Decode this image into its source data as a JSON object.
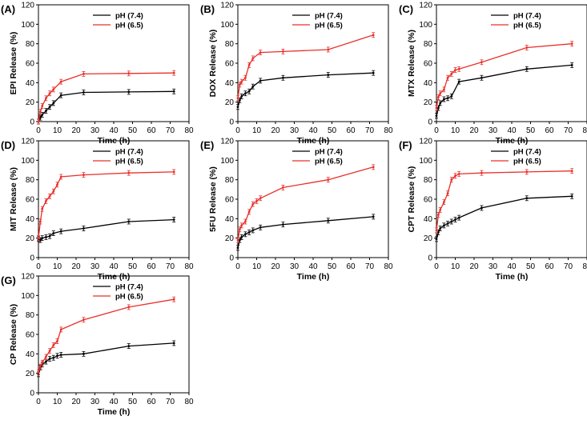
{
  "chart_data": [
    {
      "panel": "(A)",
      "type": "line",
      "xlabel": "Time (h)",
      "ylabel": "EPI Release (%)",
      "xlim": [
        0,
        80
      ],
      "ylim": [
        0,
        120
      ],
      "xticks": [
        0,
        10,
        20,
        30,
        40,
        50,
        60,
        70,
        80
      ],
      "yticks": [
        0,
        20,
        40,
        60,
        80,
        100,
        120
      ],
      "legend_position": "top-center",
      "series": [
        {
          "name": "pH (7.4)",
          "color": "#000000",
          "x": [
            0,
            1,
            2,
            4,
            6,
            8,
            12,
            24,
            48,
            72
          ],
          "y": [
            0,
            4,
            7,
            11,
            15,
            19,
            27,
            30,
            30.5,
            31
          ]
        },
        {
          "name": "pH (6.5)",
          "color": "#e8302a",
          "x": [
            0,
            1,
            2,
            4,
            6,
            8,
            12,
            24,
            48,
            72
          ],
          "y": [
            0,
            10,
            16,
            24,
            29,
            33,
            41,
            49,
            49.5,
            50
          ]
        }
      ]
    },
    {
      "panel": "(B)",
      "type": "line",
      "xlabel": "Time (h)",
      "ylabel": "DOX Release (%)",
      "xlim": [
        0,
        80
      ],
      "ylim": [
        0,
        120
      ],
      "xticks": [
        0,
        10,
        20,
        30,
        40,
        50,
        60,
        70,
        80
      ],
      "yticks": [
        0,
        20,
        40,
        60,
        80,
        100,
        120
      ],
      "legend_position": "top-center",
      "series": [
        {
          "name": "pH (7.4)",
          "color": "#000000",
          "x": [
            0,
            1,
            2,
            4,
            6,
            8,
            12,
            24,
            48,
            72
          ],
          "y": [
            15,
            22,
            26,
            29,
            31,
            36,
            42,
            45,
            48,
            50
          ]
        },
        {
          "name": "pH (6.5)",
          "color": "#e8302a",
          "x": [
            0,
            1,
            2,
            4,
            6,
            8,
            12,
            24,
            48,
            72
          ],
          "y": [
            24,
            38,
            41,
            45,
            58,
            65,
            71,
            72,
            74,
            89
          ]
        }
      ]
    },
    {
      "panel": "(C)",
      "type": "line",
      "xlabel": "Time (h)",
      "ylabel": "MTX Release (%)",
      "xlim": [
        0,
        80
      ],
      "ylim": [
        0,
        120
      ],
      "xticks": [
        0,
        10,
        20,
        30,
        40,
        50,
        60,
        70,
        80
      ],
      "yticks": [
        0,
        20,
        40,
        60,
        80,
        100,
        120
      ],
      "legend_position": "top-center",
      "series": [
        {
          "name": "pH (7.4)",
          "color": "#000000",
          "x": [
            0,
            1,
            2,
            4,
            6,
            8,
            12,
            24,
            48,
            72
          ],
          "y": [
            6,
            14,
            19,
            23,
            24,
            26,
            41,
            45,
            54,
            58
          ]
        },
        {
          "name": "pH (6.5)",
          "color": "#e8302a",
          "x": [
            0,
            1,
            2,
            4,
            6,
            8,
            10,
            12,
            24,
            48,
            72
          ],
          "y": [
            14,
            25,
            29,
            33,
            45,
            49,
            53,
            54,
            61,
            76,
            80
          ]
        }
      ]
    },
    {
      "panel": "(D)",
      "type": "line",
      "xlabel": "Time (h)",
      "ylabel": "MIT Release (%)",
      "xlim": [
        0,
        80
      ],
      "ylim": [
        0,
        120
      ],
      "xticks": [
        0,
        10,
        20,
        30,
        40,
        50,
        60,
        70,
        80
      ],
      "yticks": [
        0,
        20,
        40,
        60,
        80,
        100,
        120
      ],
      "legend_position": "top-center",
      "series": [
        {
          "name": "pH (7.4)",
          "color": "#000000",
          "x": [
            0,
            1,
            2,
            4,
            6,
            8,
            12,
            24,
            48,
            72
          ],
          "y": [
            19,
            18,
            20,
            21,
            22,
            25,
            27,
            30,
            37,
            39
          ]
        },
        {
          "name": "pH (6.5)",
          "color": "#e8302a",
          "x": [
            0,
            1,
            2,
            4,
            6,
            8,
            10,
            12,
            24,
            48,
            72
          ],
          "y": [
            20,
            37,
            50,
            58,
            63,
            68,
            75,
            83,
            85,
            87,
            88
          ]
        }
      ]
    },
    {
      "panel": "(E)",
      "type": "line",
      "xlabel": "Time (h)",
      "ylabel": "5FU Release (%)",
      "xlim": [
        0,
        80
      ],
      "ylim": [
        0,
        120
      ],
      "xticks": [
        0,
        10,
        20,
        30,
        40,
        50,
        60,
        70,
        80
      ],
      "yticks": [
        0,
        20,
        40,
        60,
        80,
        100,
        120
      ],
      "legend_position": "top-center",
      "series": [
        {
          "name": "pH (7.4)",
          "color": "#000000",
          "x": [
            0,
            1,
            2,
            4,
            6,
            8,
            12,
            24,
            48,
            72
          ],
          "y": [
            10,
            18,
            21,
            24,
            26,
            28,
            31,
            34,
            38,
            42
          ]
        },
        {
          "name": "pH (6.5)",
          "color": "#e8302a",
          "x": [
            0,
            1,
            2,
            4,
            6,
            8,
            10,
            12,
            24,
            48,
            72
          ],
          "y": [
            18,
            29,
            33,
            37,
            47,
            55,
            58,
            61,
            72,
            80,
            93
          ]
        }
      ]
    },
    {
      "panel": "(F)",
      "type": "line",
      "xlabel": "Time (h)",
      "ylabel": "CPT Release (%)",
      "xlim": [
        0,
        80
      ],
      "ylim": [
        0,
        120
      ],
      "xticks": [
        0,
        10,
        20,
        30,
        40,
        50,
        60,
        70,
        80
      ],
      "yticks": [
        0,
        20,
        40,
        60,
        80,
        100,
        120
      ],
      "legend_position": "top-center",
      "series": [
        {
          "name": "pH (7.4)",
          "color": "#000000",
          "x": [
            0,
            1,
            2,
            4,
            6,
            8,
            10,
            12,
            24,
            48,
            72
          ],
          "y": [
            19,
            26,
            30,
            33,
            35,
            37,
            39,
            41,
            51,
            61,
            63
          ]
        },
        {
          "name": "pH (6.5)",
          "color": "#e8302a",
          "x": [
            0,
            1,
            2,
            4,
            6,
            8,
            10,
            12,
            24,
            48,
            72
          ],
          "y": [
            28,
            44,
            49,
            57,
            66,
            80,
            84,
            86,
            87,
            88,
            89
          ]
        }
      ]
    },
    {
      "panel": "(G)",
      "type": "line",
      "xlabel": "Time (h)",
      "ylabel": "CP Release (%)",
      "xlim": [
        0,
        80
      ],
      "ylim": [
        0,
        120
      ],
      "xticks": [
        0,
        10,
        20,
        30,
        40,
        50,
        60,
        70,
        80
      ],
      "yticks": [
        0,
        20,
        40,
        60,
        80,
        100,
        120
      ],
      "legend_position": "top-center",
      "series": [
        {
          "name": "pH (7.4)",
          "color": "#000000",
          "x": [
            0,
            1,
            2,
            4,
            6,
            8,
            10,
            12,
            24,
            48,
            72
          ],
          "y": [
            19,
            26,
            29,
            32,
            35,
            36,
            38,
            39,
            40,
            48,
            51
          ]
        },
        {
          "name": "pH (6.5)",
          "color": "#e8302a",
          "x": [
            0,
            1,
            2,
            4,
            6,
            8,
            10,
            12,
            24,
            48,
            72
          ],
          "y": [
            21,
            27,
            31,
            37,
            43,
            49,
            53,
            65,
            75,
            88,
            96
          ]
        }
      ]
    }
  ]
}
